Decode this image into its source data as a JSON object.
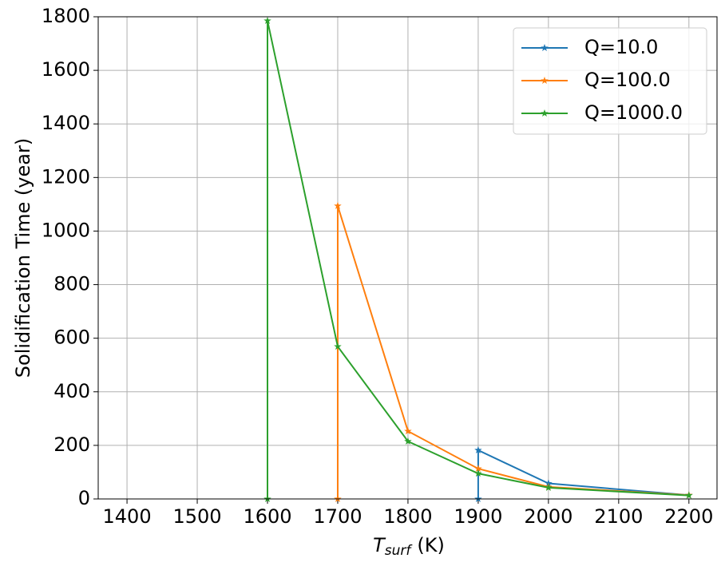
{
  "chart_data": {
    "type": "line",
    "xlabel_parts": [
      "T",
      "surf",
      "(K)"
    ],
    "ylabel": "Solidification Time (year)",
    "series": [
      {
        "name": "Q=10.0",
        "color": "#1f77b4",
        "x": [
          1900,
          1900,
          2000,
          2200
        ],
        "values": [
          0,
          182,
          58,
          14
        ]
      },
      {
        "name": "Q=100.0",
        "color": "#ff7f0e",
        "x": [
          1700,
          1700,
          1800,
          1900,
          2000,
          2200
        ],
        "values": [
          0,
          1094,
          253,
          113,
          45,
          14
        ]
      },
      {
        "name": "Q=1000.0",
        "color": "#2ca02c",
        "x": [
          1600,
          1600,
          1700,
          1800,
          1900,
          2000,
          2200
        ],
        "values": [
          0,
          1785,
          569,
          215,
          95,
          42,
          13
        ]
      }
    ],
    "xlim": [
      1359,
      2240
    ],
    "ylim": [
      0,
      1800
    ],
    "xticks": [
      1400,
      1500,
      1600,
      1700,
      1800,
      1900,
      2000,
      2100,
      2200
    ],
    "yticks": [
      0,
      200,
      400,
      600,
      800,
      1000,
      1200,
      1400,
      1600,
      1800
    ],
    "grid": true,
    "legend": "upper right"
  }
}
